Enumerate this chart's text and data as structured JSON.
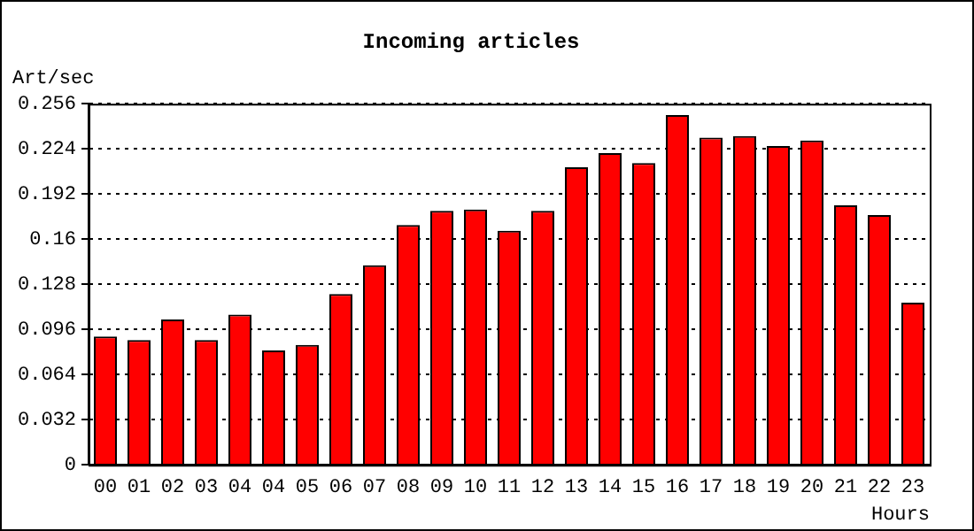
{
  "chart_data": {
    "type": "bar",
    "title": "Incoming articles",
    "xlabel": "Hours",
    "ylabel": "Art/sec",
    "categories": [
      "00",
      "01",
      "02",
      "03",
      "04",
      "04",
      "05",
      "06",
      "07",
      "08",
      "09",
      "10",
      "11",
      "12",
      "13",
      "14",
      "15",
      "16",
      "17",
      "18",
      "19",
      "20",
      "21",
      "22",
      "23"
    ],
    "values": [
      0.091,
      0.0885,
      0.103,
      0.0885,
      0.1065,
      0.081,
      0.085,
      0.121,
      0.1415,
      0.17,
      0.18,
      0.181,
      0.166,
      0.18,
      0.211,
      0.221,
      0.214,
      0.248,
      0.232,
      0.233,
      0.226,
      0.23,
      0.184,
      0.177,
      0.115
    ],
    "color": "#ff0000",
    "ylim": [
      0,
      0.256
    ],
    "yticks": [
      0,
      0.032,
      0.064,
      0.096,
      0.128,
      0.16,
      0.192,
      0.224,
      0.256
    ],
    "grid": "y",
    "legend": false
  }
}
